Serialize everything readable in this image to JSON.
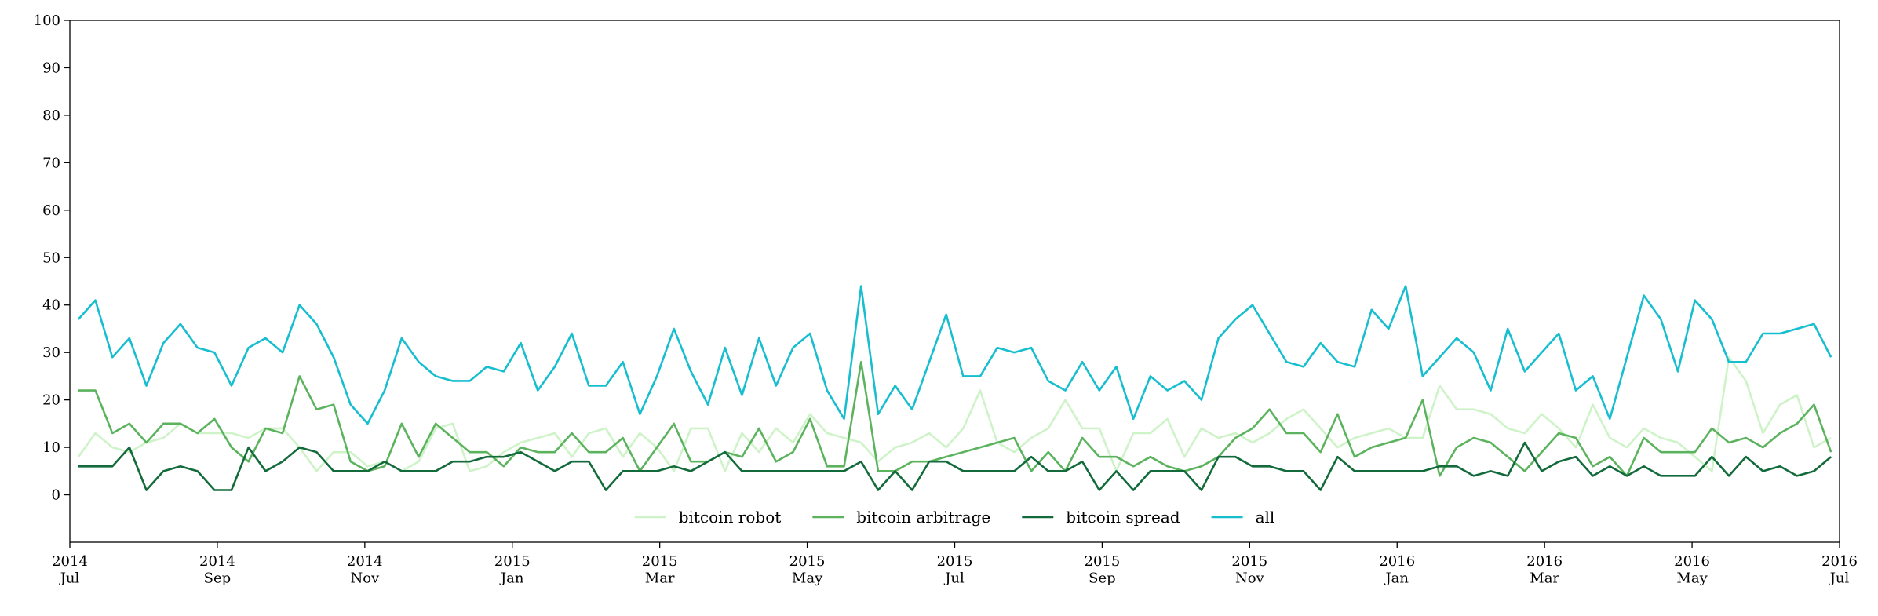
{
  "chart_data": {
    "type": "line",
    "xlim": [
      "2014-07",
      "2016-07"
    ],
    "xticks": [
      {
        "value": "2014-07",
        "label": "2014\nJul"
      },
      {
        "value": "2014-09",
        "label": "2014\nSep"
      },
      {
        "value": "2014-11",
        "label": "2014\nNov"
      },
      {
        "value": "2015-01",
        "label": "2015\nJan"
      },
      {
        "value": "2015-03",
        "label": "2015\nMar"
      },
      {
        "value": "2015-05",
        "label": "2015\nMay"
      },
      {
        "value": "2015-07",
        "label": "2015\nJul"
      },
      {
        "value": "2015-09",
        "label": "2015\nSep"
      },
      {
        "value": "2015-11",
        "label": "2015\nNov"
      },
      {
        "value": "2016-01",
        "label": "2016\nJan"
      },
      {
        "value": "2016-03",
        "label": "2016\nMar"
      },
      {
        "value": "2016-05",
        "label": "2016\nMay"
      },
      {
        "value": "2016-07",
        "label": "2016\nJul"
      }
    ],
    "ylim": [
      -10,
      100
    ],
    "yticks": [
      0,
      10,
      20,
      30,
      40,
      50,
      60,
      70,
      80,
      90,
      100
    ],
    "grid": false,
    "legend": "lower center",
    "series": [
      {
        "name": "bitcoin robot",
        "color": "#cff3c8",
        "values": [
          8,
          13,
          10,
          9,
          11,
          12,
          15,
          13,
          13,
          13,
          12,
          14,
          14,
          10,
          5,
          9,
          9,
          6,
          7,
          5,
          7,
          14,
          15,
          5,
          6,
          9,
          11,
          12,
          13,
          8,
          13,
          14,
          8,
          13,
          10,
          5,
          14,
          14,
          5,
          13,
          9,
          14,
          11,
          17,
          13,
          12,
          11,
          7,
          10,
          11,
          13,
          10,
          14,
          22,
          11,
          9,
          12,
          14,
          20,
          14,
          14,
          5,
          13,
          13,
          16,
          8,
          14,
          12,
          13,
          11,
          13,
          16,
          18,
          14,
          10,
          12,
          13,
          14,
          12,
          12,
          23,
          18,
          18,
          17,
          14,
          13,
          17,
          14,
          10,
          19,
          12,
          10,
          14,
          12,
          11,
          8,
          5,
          29,
          24,
          13,
          19,
          21,
          10,
          12
        ]
      },
      {
        "name": "bitcoin arbitrage",
        "color": "#5cb35e",
        "values": [
          22,
          22,
          13,
          15,
          11,
          15,
          15,
          13,
          16,
          10,
          7,
          14,
          13,
          25,
          18,
          19,
          7,
          5,
          6,
          15,
          8,
          15,
          12,
          9,
          9,
          6,
          10,
          9,
          9,
          13,
          9,
          9,
          12,
          5,
          10,
          15,
          7,
          7,
          9,
          8,
          14,
          7,
          9,
          16,
          6,
          6,
          28,
          5,
          5,
          7,
          7,
          8,
          9,
          10,
          11,
          12,
          5,
          9,
          5,
          12,
          8,
          8,
          6,
          8,
          6,
          5,
          6,
          8,
          12,
          14,
          18,
          13,
          13,
          9,
          17,
          8,
          10,
          11,
          12,
          20,
          4,
          10,
          12,
          11,
          8,
          5,
          9,
          13,
          12,
          6,
          8,
          4,
          12,
          9,
          9,
          9,
          14,
          11,
          12,
          10,
          13,
          15,
          19,
          9
        ]
      },
      {
        "name": "bitcoin spread",
        "color": "#136b3c",
        "values": [
          6,
          6,
          6,
          10,
          1,
          5,
          6,
          5,
          1,
          1,
          10,
          5,
          7,
          10,
          9,
          5,
          5,
          5,
          7,
          5,
          5,
          5,
          7,
          7,
          8,
          8,
          9,
          7,
          5,
          7,
          7,
          1,
          5,
          5,
          5,
          6,
          5,
          7,
          9,
          5,
          5,
          5,
          5,
          5,
          5,
          5,
          7,
          1,
          5,
          1,
          7,
          7,
          5,
          5,
          5,
          5,
          8,
          5,
          5,
          7,
          1,
          5,
          1,
          5,
          5,
          5,
          1,
          8,
          8,
          6,
          6,
          5,
          5,
          1,
          8,
          5,
          5,
          5,
          5,
          5,
          6,
          6,
          4,
          5,
          4,
          11,
          5,
          7,
          8,
          4,
          6,
          4,
          6,
          4,
          4,
          4,
          8,
          4,
          8,
          5,
          6,
          4,
          5,
          8
        ]
      },
      {
        "name": "all",
        "color": "#17becf",
        "values": [
          37,
          41,
          29,
          33,
          23,
          32,
          36,
          31,
          30,
          23,
          31,
          33,
          30,
          40,
          36,
          29,
          19,
          15,
          22,
          33,
          28,
          25,
          24,
          24,
          27,
          26,
          32,
          22,
          27,
          34,
          23,
          23,
          28,
          17,
          25,
          35,
          26,
          19,
          31,
          21,
          33,
          23,
          31,
          34,
          22,
          16,
          44,
          17,
          23,
          18,
          28,
          38,
          25,
          25,
          31,
          30,
          31,
          24,
          22,
          28,
          22,
          27,
          16,
          25,
          22,
          24,
          20,
          33,
          37,
          40,
          34,
          28,
          27,
          32,
          28,
          27,
          39,
          35,
          44,
          25,
          29,
          33,
          30,
          22,
          35,
          26,
          30,
          34,
          22,
          25,
          16,
          29,
          42,
          37,
          26,
          41,
          37,
          28,
          28,
          34,
          34,
          35,
          36,
          29
        ]
      }
    ]
  }
}
